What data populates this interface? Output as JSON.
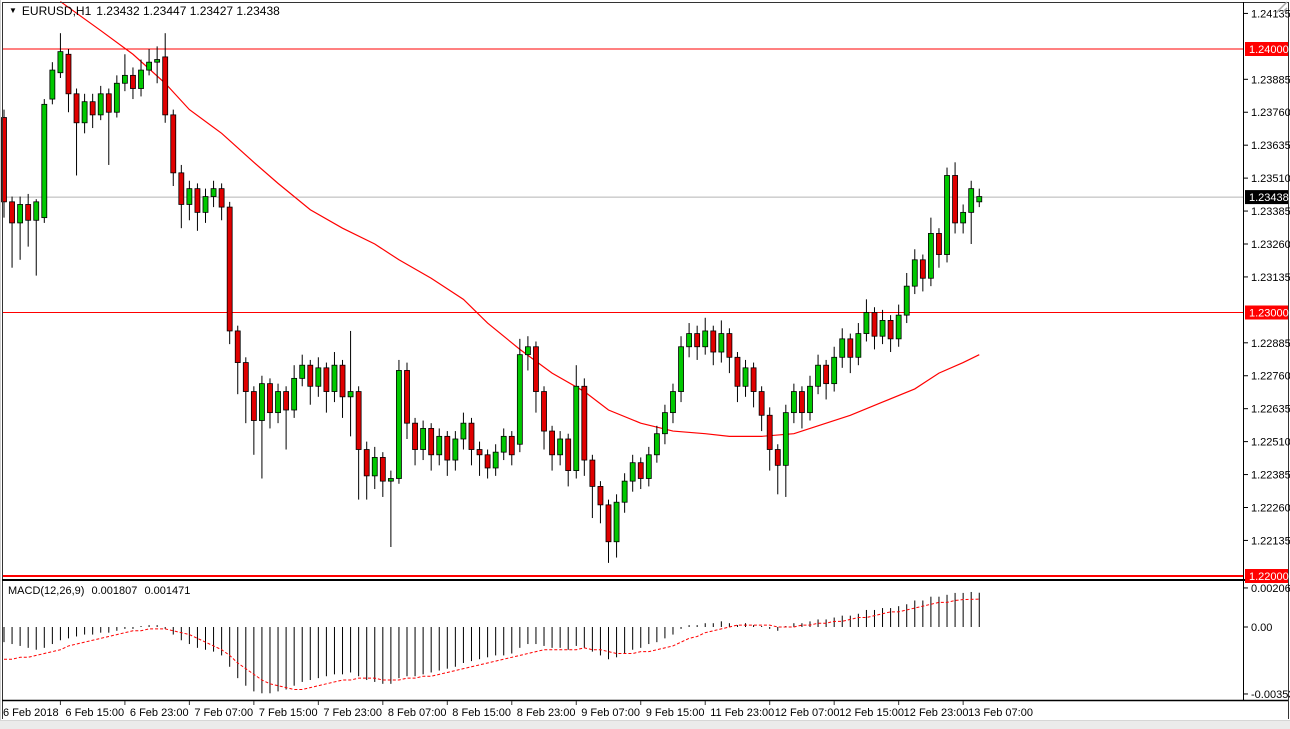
{
  "header": {
    "symbol": "EURUSD,H1",
    "ohlc": "1.23432 1.23447 1.23427 1.23438"
  },
  "macd_panel": {
    "label": "MACD(12,26,9)",
    "macd_value": "0.001807",
    "signal_value": "0.001471"
  },
  "chart_data": {
    "type": "candlestick",
    "symbol": "EURUSD",
    "timeframe": "H1",
    "title": "EURUSD,H1",
    "current_bar": {
      "open": 1.23432,
      "high": 1.23447,
      "low": 1.23427,
      "close": 1.23438
    },
    "current_price": 1.23438,
    "levels": [
      1.24,
      1.23,
      1.22
    ],
    "price_axis": {
      "ticks": [
        {
          "label": "1.24135"
        },
        {
          "label": "1.24000",
          "badge": "level"
        },
        {
          "label": "1.23885"
        },
        {
          "label": "1.23760"
        },
        {
          "label": "1.23635"
        },
        {
          "label": "1.23510"
        },
        {
          "label": "1.23438",
          "badge": "current"
        },
        {
          "label": "1.23385"
        },
        {
          "label": "1.23260"
        },
        {
          "label": "1.23135"
        },
        {
          "label": "1.23000",
          "badge": "level"
        },
        {
          "label": "1.22885"
        },
        {
          "label": "1.22760"
        },
        {
          "label": "1.22635"
        },
        {
          "label": "1.22510"
        },
        {
          "label": "1.22385"
        },
        {
          "label": "1.22260"
        },
        {
          "label": "1.22135"
        },
        {
          "label": "1.22000",
          "badge": "level"
        }
      ]
    },
    "time_axis": {
      "labels": [
        "6 Feb 2018",
        "6 Feb 15:00",
        "6 Feb 23:00",
        "7 Feb 07:00",
        "7 Feb 15:00",
        "7 Feb 23:00",
        "8 Feb 07:00",
        "8 Feb 15:00",
        "8 Feb 23:00",
        "9 Feb 07:00",
        "9 Feb 15:00",
        "11 Feb 23:00",
        "12 Feb 07:00",
        "12 Feb 15:00",
        "12 Feb 23:00",
        "13 Feb 07:00"
      ]
    },
    "candles": [
      [
        1.2374,
        1.2377,
        1.2336,
        1.2342
      ],
      [
        1.2342,
        1.2344,
        1.2317,
        1.2334
      ],
      [
        1.2334,
        1.2344,
        1.232,
        1.2341
      ],
      [
        1.2341,
        1.2345,
        1.2325,
        1.2335
      ],
      [
        1.2335,
        1.2343,
        1.2314,
        1.2342
      ],
      [
        1.2336,
        1.2381,
        1.2334,
        1.2379
      ],
      [
        1.2381,
        1.2395,
        1.2379,
        1.2392
      ],
      [
        1.2391,
        1.2406,
        1.2389,
        1.2399
      ],
      [
        1.2398,
        1.24,
        1.2376,
        1.2383
      ],
      [
        1.2383,
        1.2385,
        1.2352,
        1.2372
      ],
      [
        1.2372,
        1.2383,
        1.2368,
        1.238
      ],
      [
        1.238,
        1.2383,
        1.237,
        1.2375
      ],
      [
        1.2375,
        1.2386,
        1.2373,
        1.2383
      ],
      [
        1.2383,
        1.2385,
        1.2356,
        1.2376
      ],
      [
        1.2376,
        1.239,
        1.2374,
        1.2387
      ],
      [
        1.2387,
        1.2398,
        1.2384,
        1.239
      ],
      [
        1.239,
        1.2393,
        1.2381,
        1.2385
      ],
      [
        1.2385,
        1.2396,
        1.2382,
        1.2392
      ],
      [
        1.2392,
        1.24,
        1.239,
        1.2395
      ],
      [
        1.2395,
        1.2401,
        1.2387,
        1.2396
      ],
      [
        1.2397,
        1.2406,
        1.2372,
        1.2375
      ],
      [
        1.2375,
        1.2377,
        1.2348,
        1.2353
      ],
      [
        1.2353,
        1.2356,
        1.2332,
        1.2341
      ],
      [
        1.2341,
        1.235,
        1.2335,
        1.2347
      ],
      [
        1.2347,
        1.2349,
        1.2331,
        1.2338
      ],
      [
        1.2338,
        1.2347,
        1.2334,
        1.2344
      ],
      [
        1.2344,
        1.235,
        1.234,
        1.2347
      ],
      [
        1.2347,
        1.2349,
        1.2335,
        1.234
      ],
      [
        1.234,
        1.2342,
        1.2288,
        1.2293
      ],
      [
        1.2293,
        1.2295,
        1.2269,
        1.2281
      ],
      [
        1.2281,
        1.2283,
        1.2258,
        1.227
      ],
      [
        1.227,
        1.2272,
        1.2246,
        1.2259
      ],
      [
        1.2259,
        1.2276,
        1.2237,
        1.2273
      ],
      [
        1.2273,
        1.2275,
        1.2256,
        1.2262
      ],
      [
        1.2262,
        1.2273,
        1.2258,
        1.227
      ],
      [
        1.227,
        1.2272,
        1.2248,
        1.2263
      ],
      [
        1.2263,
        1.228,
        1.226,
        1.2275
      ],
      [
        1.2275,
        1.2284,
        1.2272,
        1.228
      ],
      [
        1.228,
        1.2282,
        1.2265,
        1.2272
      ],
      [
        1.2272,
        1.2283,
        1.2268,
        1.2279
      ],
      [
        1.2279,
        1.2281,
        1.2262,
        1.227
      ],
      [
        1.227,
        1.2285,
        1.2266,
        1.228
      ],
      [
        1.228,
        1.2282,
        1.226,
        1.2268
      ],
      [
        1.2268,
        1.2293,
        1.2253,
        1.227
      ],
      [
        1.227,
        1.2272,
        1.2229,
        1.2248
      ],
      [
        1.2248,
        1.2251,
        1.2229,
        1.2238
      ],
      [
        1.2238,
        1.2249,
        1.2233,
        1.2245
      ],
      [
        1.2245,
        1.2247,
        1.223,
        1.2236
      ],
      [
        1.2236,
        1.224,
        1.2211,
        1.2237
      ],
      [
        1.2237,
        1.2282,
        1.2235,
        1.2278
      ],
      [
        1.2278,
        1.2281,
        1.2252,
        1.2258
      ],
      [
        1.2258,
        1.226,
        1.2242,
        1.2248
      ],
      [
        1.2248,
        1.2259,
        1.2244,
        1.2256
      ],
      [
        1.2256,
        1.2258,
        1.224,
        1.2246
      ],
      [
        1.2246,
        1.2256,
        1.2242,
        1.2253
      ],
      [
        1.2253,
        1.2255,
        1.2238,
        1.2244
      ],
      [
        1.2244,
        1.2255,
        1.224,
        1.2252
      ],
      [
        1.2252,
        1.2262,
        1.2248,
        1.2258
      ],
      [
        1.2258,
        1.226,
        1.2242,
        1.2248
      ],
      [
        1.2248,
        1.2251,
        1.2238,
        1.2246
      ],
      [
        1.2246,
        1.2248,
        1.2237,
        1.2241
      ],
      [
        1.2241,
        1.225,
        1.2238,
        1.2247
      ],
      [
        1.2247,
        1.2256,
        1.2244,
        1.2253
      ],
      [
        1.2253,
        1.2255,
        1.2242,
        1.2246
      ],
      [
        1.225,
        1.229,
        1.2247,
        1.2284
      ],
      [
        1.2284,
        1.2291,
        1.2278,
        1.2287
      ],
      [
        1.2287,
        1.2289,
        1.2262,
        1.227
      ],
      [
        1.227,
        1.2272,
        1.2248,
        1.2255
      ],
      [
        1.2255,
        1.2257,
        1.224,
        1.2246
      ],
      [
        1.2246,
        1.2255,
        1.2242,
        1.2252
      ],
      [
        1.2252,
        1.2254,
        1.2234,
        1.224
      ],
      [
        1.224,
        1.228,
        1.2237,
        1.2272
      ],
      [
        1.2272,
        1.2275,
        1.2238,
        1.2244
      ],
      [
        1.2244,
        1.2246,
        1.2222,
        1.2234
      ],
      [
        1.2234,
        1.2236,
        1.222,
        1.2227
      ],
      [
        1.2227,
        1.2229,
        1.2205,
        1.2213
      ],
      [
        1.2213,
        1.2231,
        1.2207,
        1.2228
      ],
      [
        1.2228,
        1.2239,
        1.2224,
        1.2236
      ],
      [
        1.2236,
        1.2246,
        1.2232,
        1.2243
      ],
      [
        1.2243,
        1.2245,
        1.2233,
        1.2237
      ],
      [
        1.2237,
        1.2249,
        1.2234,
        1.2246
      ],
      [
        1.2246,
        1.2257,
        1.2243,
        1.2254
      ],
      [
        1.2254,
        1.2265,
        1.225,
        1.2262
      ],
      [
        1.2262,
        1.2273,
        1.2258,
        1.227
      ],
      [
        1.227,
        1.2291,
        1.2266,
        1.2287
      ],
      [
        1.2287,
        1.2296,
        1.2283,
        1.2292
      ],
      [
        1.2292,
        1.2295,
        1.2282,
        1.2287
      ],
      [
        1.2287,
        1.2298,
        1.2284,
        1.2293
      ],
      [
        1.2293,
        1.2295,
        1.228,
        1.2285
      ],
      [
        1.2285,
        1.2297,
        1.2281,
        1.2292
      ],
      [
        1.2292,
        1.2294,
        1.2277,
        1.2283
      ],
      [
        1.2283,
        1.2285,
        1.2266,
        1.2272
      ],
      [
        1.2272,
        1.2282,
        1.2268,
        1.2279
      ],
      [
        1.2279,
        1.2281,
        1.2264,
        1.227
      ],
      [
        1.227,
        1.2272,
        1.2255,
        1.2261
      ],
      [
        1.2261,
        1.2264,
        1.224,
        1.2248
      ],
      [
        1.2248,
        1.225,
        1.2231,
        1.2242
      ],
      [
        1.2242,
        1.2265,
        1.223,
        1.2262
      ],
      [
        1.2262,
        1.2273,
        1.2258,
        1.227
      ],
      [
        1.227,
        1.2272,
        1.2256,
        1.2262
      ],
      [
        1.2262,
        1.2276,
        1.2259,
        1.2272
      ],
      [
        1.2272,
        1.2284,
        1.2269,
        1.228
      ],
      [
        1.228,
        1.2282,
        1.2267,
        1.2273
      ],
      [
        1.2273,
        1.2287,
        1.227,
        1.2283
      ],
      [
        1.2283,
        1.2294,
        1.2279,
        1.229
      ],
      [
        1.229,
        1.2292,
        1.2277,
        1.2283
      ],
      [
        1.2283,
        1.2296,
        1.228,
        1.2292
      ],
      [
        1.2292,
        1.2305,
        1.2289,
        1.23
      ],
      [
        1.23,
        1.2302,
        1.2286,
        1.2291
      ],
      [
        1.2291,
        1.2301,
        1.2288,
        1.2297
      ],
      [
        1.2297,
        1.2299,
        1.2285,
        1.229
      ],
      [
        1.229,
        1.2303,
        1.2287,
        1.2299
      ],
      [
        1.2299,
        1.2315,
        1.2296,
        1.231
      ],
      [
        1.231,
        1.2324,
        1.2307,
        1.232
      ],
      [
        1.232,
        1.2322,
        1.2308,
        1.2313
      ],
      [
        1.2313,
        1.2336,
        1.231,
        1.233
      ],
      [
        1.233,
        1.2332,
        1.2317,
        1.2322
      ],
      [
        1.2322,
        1.2355,
        1.2319,
        1.2352
      ],
      [
        1.2352,
        1.2357,
        1.233,
        1.2334
      ],
      [
        1.2334,
        1.2341,
        1.233,
        1.2338
      ],
      [
        1.2338,
        1.235,
        1.2326,
        1.2347
      ],
      [
        1.2342,
        1.2347,
        1.234,
        1.2344
      ]
    ],
    "ma_points": [
      [
        7,
        1.2418
      ],
      [
        12,
        1.2407
      ],
      [
        16,
        1.2398
      ],
      [
        20,
        1.2387
      ],
      [
        23,
        1.2377
      ],
      [
        27,
        1.2368
      ],
      [
        31,
        1.2357
      ],
      [
        34,
        1.2349
      ],
      [
        38,
        1.2339
      ],
      [
        42,
        1.2332
      ],
      [
        46,
        1.2326
      ],
      [
        49,
        1.232
      ],
      [
        53,
        1.2313
      ],
      [
        57,
        1.2305
      ],
      [
        60,
        1.2296
      ],
      [
        64,
        1.2286
      ],
      [
        68,
        1.2277
      ],
      [
        72,
        1.227
      ],
      [
        75,
        1.2263
      ],
      [
        79,
        1.2258
      ],
      [
        83,
        1.2255
      ],
      [
        87,
        1.2254
      ],
      [
        90,
        1.2253
      ],
      [
        94,
        1.2253
      ],
      [
        98,
        1.2254
      ],
      [
        101,
        1.2257
      ],
      [
        105,
        1.2261
      ],
      [
        109,
        1.2266
      ],
      [
        113,
        1.2271
      ],
      [
        116,
        1.2277
      ],
      [
        119,
        1.2281
      ],
      [
        121,
        1.2284
      ]
    ],
    "macd": {
      "axis_labels": [
        "0.002062",
        "0.00",
        "-0.003536"
      ],
      "axis_values": [
        0.002062,
        0,
        -0.003536
      ],
      "histogram": [
        -0.0008,
        -0.0009,
        -0.001,
        -0.0011,
        -0.0012,
        -0.0011,
        -0.0009,
        -0.0007,
        -0.0006,
        -0.0005,
        -0.0004,
        -0.0004,
        -0.0003,
        -0.0003,
        -0.0002,
        -0.0001,
        -0.0001,
        0.0,
        0.0001,
        0.0001,
        -0.0001,
        -0.0004,
        -0.0007,
        -0.0009,
        -0.0011,
        -0.0012,
        -0.0013,
        -0.0015,
        -0.0021,
        -0.0027,
        -0.0031,
        -0.0034,
        -0.0035,
        -0.0035,
        -0.0034,
        -0.0033,
        -0.0031,
        -0.0029,
        -0.0028,
        -0.0027,
        -0.0026,
        -0.0025,
        -0.0025,
        -0.0024,
        -0.0026,
        -0.0028,
        -0.0029,
        -0.003,
        -0.003,
        -0.0027,
        -0.0026,
        -0.0026,
        -0.0025,
        -0.0024,
        -0.0023,
        -0.0022,
        -0.0021,
        -0.0019,
        -0.0018,
        -0.0017,
        -0.0016,
        -0.0015,
        -0.0015,
        -0.0014,
        -0.0011,
        -0.0009,
        -0.0009,
        -0.001,
        -0.0011,
        -0.0011,
        -0.0012,
        -0.001,
        -0.0011,
        -0.0013,
        -0.0015,
        -0.0017,
        -0.0016,
        -0.0014,
        -0.0012,
        -0.0011,
        -0.0009,
        -0.0008,
        -0.0006,
        -0.0004,
        -0.0001,
        0.0001,
        0.0001,
        0.0002,
        0.0002,
        0.0003,
        0.0002,
        0.0001,
        0.0002,
        0.0001,
        0.0,
        -0.0001,
        -0.0002,
        0.0,
        0.0002,
        0.0002,
        0.0003,
        0.0004,
        0.0004,
        0.0005,
        0.0006,
        0.0006,
        0.0007,
        0.0009,
        0.0009,
        0.001,
        0.001,
        0.0011,
        0.0012,
        0.0014,
        0.0014,
        0.0016,
        0.0016,
        0.0017,
        0.0018,
        0.0018,
        0.00185,
        0.00181
      ],
      "signal": [
        -0.0017,
        -0.0017,
        -0.0016,
        -0.0016,
        -0.0015,
        -0.0014,
        -0.0013,
        -0.0012,
        -0.001,
        -0.0009,
        -0.0008,
        -0.0007,
        -0.0006,
        -0.0005,
        -0.0004,
        -0.0003,
        -0.0002,
        -0.0002,
        -0.0001,
        -0.0001,
        -0.0001,
        -0.0002,
        -0.0003,
        -0.0004,
        -0.0006,
        -0.0008,
        -0.001,
        -0.0012,
        -0.0015,
        -0.0019,
        -0.0022,
        -0.0025,
        -0.0028,
        -0.003,
        -0.0031,
        -0.0032,
        -0.0033,
        -0.0033,
        -0.0032,
        -0.0031,
        -0.003,
        -0.0029,
        -0.0028,
        -0.0028,
        -0.0027,
        -0.0027,
        -0.0027,
        -0.0028,
        -0.0028,
        -0.0028,
        -0.0027,
        -0.0027,
        -0.0026,
        -0.0026,
        -0.0025,
        -0.0024,
        -0.0023,
        -0.0022,
        -0.0021,
        -0.002,
        -0.0019,
        -0.0018,
        -0.0017,
        -0.0016,
        -0.0015,
        -0.0014,
        -0.0013,
        -0.0012,
        -0.0012,
        -0.0012,
        -0.0012,
        -0.0012,
        -0.0011,
        -0.0012,
        -0.0012,
        -0.0013,
        -0.0014,
        -0.0014,
        -0.0014,
        -0.0013,
        -0.0013,
        -0.0012,
        -0.0011,
        -0.001,
        -0.0008,
        -0.0006,
        -0.0005,
        -0.0003,
        -0.0002,
        -0.0001,
        0.0,
        0.0001,
        0.0001,
        0.0001,
        0.0001,
        0.0001,
        0.0,
        0.0,
        0.0,
        0.0001,
        0.0001,
        0.0002,
        0.0002,
        0.0003,
        0.0003,
        0.0004,
        0.0005,
        0.0005,
        0.0006,
        0.0007,
        0.0008,
        0.0008,
        0.0009,
        0.001,
        0.0011,
        0.0012,
        0.0013,
        0.0013,
        0.0014,
        0.00145,
        0.00146,
        0.00147
      ]
    },
    "colors": {
      "bull": "#00C800",
      "bear": "#E00000",
      "wick": "#000000",
      "level_line": "#FF0000",
      "ma_line": "#FF0000",
      "signal_line": "#FF0000",
      "histogram": "#000000",
      "current_price_line": "#B4B4B4",
      "badge_level_bg": "#FF0000",
      "badge_current_bg": "#000000",
      "badge_text": "#FFFFFF",
      "border": "#000000",
      "axis_text": "#000000"
    }
  }
}
